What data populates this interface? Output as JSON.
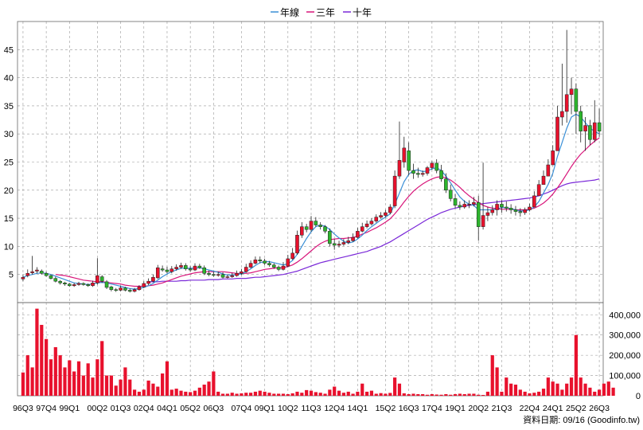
{
  "colors": {
    "up": "#e8112d",
    "down": "#2db52d",
    "wick": "#222222",
    "volume": "#e8112d",
    "line_year": "#3a8fd6",
    "line_three_year": "#d8157a",
    "line_ten_year": "#7a28d8",
    "grid": "#999999",
    "axis": "#000000"
  },
  "chart_data": {
    "type": "candlestick",
    "grid": true,
    "legend_placement": "top-center",
    "legend": [
      {
        "label": "年線",
        "color_key": "line_year"
      },
      {
        "label": "三年",
        "color_key": "line_three_year"
      },
      {
        "label": "十年",
        "color_key": "line_ten_year"
      }
    ],
    "price_axis": {
      "ylim": [
        0,
        50
      ],
      "ticks": [
        5,
        10,
        15,
        20,
        25,
        30,
        35,
        40,
        45
      ]
    },
    "volume_axis": {
      "ylim": [
        0,
        460000
      ],
      "ticks": [
        0,
        100000,
        200000,
        300000,
        400000
      ],
      "tick_labels": [
        "0",
        "100,000",
        "200,000",
        "300,000",
        "400,000"
      ]
    },
    "x_tick_labels": [
      "96Q3",
      "97Q4",
      "99Q1",
      "00Q2",
      "01Q3",
      "02Q4",
      "04Q1",
      "05Q2",
      "06Q3",
      "07Q4",
      "09Q1",
      "10Q2",
      "11Q3",
      "12Q4",
      "14Q1",
      "15Q2",
      "16Q3",
      "17Q4",
      "19Q1",
      "20Q2",
      "21Q3",
      "22Q4",
      "24Q1",
      "25Q2",
      "26Q3"
    ],
    "footer": "資料日期: 09/16 (Goodinfo.tw)",
    "closes": [
      4.5,
      5.2,
      5.5,
      5.8,
      5.2,
      4.8,
      4.3,
      3.8,
      3.5,
      3.3,
      3.0,
      3.2,
      3.4,
      3.2,
      3.0,
      3.5,
      4.8,
      3.8,
      2.7,
      2.3,
      2.2,
      2.6,
      2.2,
      2.0,
      2.3,
      2.8,
      3.4,
      3.8,
      4.5,
      6.2,
      5.8,
      5.5,
      6.0,
      6.3,
      6.6,
      6.0,
      5.8,
      6.5,
      6.2,
      5.2,
      5.0,
      4.9,
      5.0,
      4.5,
      4.6,
      4.8,
      5.2,
      5.5,
      6.3,
      7.0,
      7.6,
      7.4,
      7.0,
      6.7,
      6.3,
      5.9,
      6.5,
      7.8,
      8.8,
      12.0,
      13.5,
      13.0,
      14.5,
      13.8,
      13.5,
      12.7,
      10.5,
      10.2,
      10.4,
      10.7,
      11.0,
      11.6,
      12.7,
      13.5,
      14.0,
      14.5,
      15.2,
      15.5,
      16.0,
      17.0,
      22.5,
      25.3,
      27.5,
      23.5,
      23.0,
      22.8,
      23.0,
      24.0,
      24.8,
      23.5,
      22.0,
      20.0,
      18.5,
      17.3,
      17.0,
      17.5,
      17.5,
      17.8,
      13.5,
      15.5,
      16.0,
      16.5,
      17.5,
      17.0,
      16.8,
      16.5,
      16.2,
      16.0,
      16.5,
      17.0,
      19.0,
      21.0,
      22.5,
      24.5,
      27.0,
      33.0,
      34.0,
      37.0,
      38.0,
      34.0,
      30.5,
      31.5,
      29.0,
      32.0,
      30.5
    ],
    "opens": [
      4.2,
      4.8,
      5.3,
      5.6,
      5.6,
      5.2,
      4.8,
      4.3,
      3.8,
      3.5,
      3.3,
      3.0,
      3.2,
      3.4,
      3.2,
      3.0,
      3.5,
      4.6,
      3.7,
      2.8,
      2.3,
      2.2,
      2.6,
      2.2,
      2.0,
      2.3,
      2.8,
      3.4,
      3.8,
      4.4,
      6.0,
      5.8,
      5.5,
      6.0,
      6.3,
      6.6,
      6.0,
      5.8,
      6.5,
      6.2,
      5.2,
      5.0,
      4.9,
      5.0,
      4.5,
      4.6,
      4.8,
      5.2,
      5.5,
      6.3,
      7.0,
      7.6,
      7.4,
      7.0,
      6.7,
      6.3,
      5.9,
      6.5,
      7.8,
      8.8,
      12.0,
      13.5,
      13.0,
      14.5,
      13.8,
      13.5,
      12.7,
      10.5,
      10.2,
      10.4,
      10.7,
      11.0,
      11.6,
      12.7,
      13.5,
      14.0,
      14.5,
      15.2,
      15.5,
      16.0,
      17.2,
      22.5,
      25.0,
      27.0,
      23.5,
      23.0,
      22.8,
      23.0,
      24.0,
      24.8,
      23.5,
      22.0,
      20.0,
      18.5,
      17.3,
      17.0,
      17.5,
      17.5,
      17.8,
      13.5,
      15.5,
      16.0,
      16.5,
      17.5,
      17.0,
      16.8,
      16.5,
      16.2,
      16.0,
      16.5,
      17.0,
      19.0,
      21.0,
      22.5,
      24.5,
      27.0,
      33.0,
      34.0,
      37.0,
      38.0,
      34.0,
      30.5,
      31.5,
      29.0,
      32.0
    ],
    "highs": [
      4.9,
      5.9,
      8.3,
      6.3,
      5.9,
      5.5,
      5.0,
      4.6,
      4.0,
      3.7,
      3.5,
      3.5,
      3.7,
      3.6,
      3.4,
      3.9,
      7.9,
      4.9,
      4.0,
      3.0,
      2.6,
      3.0,
      2.8,
      2.5,
      2.6,
      3.1,
      3.8,
      4.3,
      5.0,
      6.7,
      6.6,
      6.4,
      6.5,
      6.8,
      7.1,
      7.0,
      6.5,
      7.0,
      6.9,
      6.6,
      5.7,
      5.5,
      5.5,
      5.4,
      5.0,
      5.3,
      5.7,
      6.0,
      6.9,
      7.5,
      8.2,
      8.2,
      7.8,
      7.4,
      7.0,
      6.6,
      7.2,
      8.5,
      9.7,
      12.8,
      14.3,
      14.0,
      15.4,
      15.2,
      14.3,
      13.8,
      13.2,
      11.3,
      11.0,
      11.3,
      11.7,
      12.3,
      13.3,
      14.2,
      14.6,
      15.0,
      15.7,
      16.1,
      16.5,
      17.5,
      23.5,
      32.2,
      29.5,
      28.5,
      24.7,
      24.0,
      23.5,
      24.3,
      25.2,
      25.5,
      24.5,
      23.0,
      21.0,
      19.3,
      18.0,
      18.2,
      18.2,
      18.8,
      19.0,
      24.9,
      17.0,
      17.3,
      18.2,
      18.2,
      18.0,
      17.5,
      17.2,
      16.8,
      16.9,
      17.6,
      19.8,
      21.8,
      23.5,
      25.5,
      28.0,
      35.0,
      42.5,
      48.5,
      40.0,
      39.0,
      35.0,
      33.0,
      32.5,
      36.0,
      34.5
    ],
    "lows": [
      3.8,
      4.5,
      5.0,
      5.2,
      5.0,
      4.6,
      4.1,
      3.6,
      3.2,
      3.0,
      2.8,
      2.8,
      3.0,
      3.0,
      2.8,
      2.8,
      3.2,
      3.5,
      2.4,
      2.0,
      1.9,
      2.0,
      2.0,
      1.8,
      1.8,
      2.1,
      2.6,
      3.1,
      3.6,
      4.2,
      5.5,
      5.2,
      5.2,
      5.7,
      6.0,
      5.7,
      5.5,
      5.6,
      6.0,
      4.9,
      4.7,
      4.6,
      4.6,
      4.3,
      4.3,
      4.4,
      4.6,
      4.9,
      5.3,
      6.1,
      6.8,
      7.0,
      6.7,
      6.4,
      6.0,
      5.6,
      5.7,
      6.3,
      7.6,
      8.5,
      11.5,
      12.5,
      12.6,
      13.5,
      13.0,
      12.3,
      10.0,
      9.4,
      9.8,
      10.1,
      10.4,
      10.8,
      11.4,
      12.5,
      13.2,
      13.7,
      14.2,
      14.9,
      15.2,
      15.7,
      16.8,
      22.0,
      24.0,
      22.7,
      22.0,
      22.2,
      22.4,
      22.6,
      23.6,
      23.0,
      21.5,
      19.5,
      18.0,
      16.8,
      16.5,
      16.7,
      16.8,
      17.1,
      11.0,
      13.0,
      14.5,
      15.5,
      15.5,
      16.0,
      16.2,
      15.8,
      15.5,
      15.3,
      15.6,
      16.2,
      18.5,
      20.5,
      22.0,
      24.0,
      26.5,
      29.5,
      31.5,
      32.0,
      33.5,
      30.0,
      28.5,
      27.0,
      28.0,
      28.5,
      29.5
    ],
    "volumes": [
      115000,
      200000,
      140000,
      430000,
      350000,
      280000,
      180000,
      240000,
      200000,
      140000,
      175000,
      120000,
      170000,
      100000,
      160000,
      90000,
      180000,
      270000,
      100000,
      100000,
      50000,
      80000,
      140000,
      80000,
      30000,
      20000,
      30000,
      75000,
      60000,
      45000,
      110000,
      170000,
      30000,
      35000,
      25000,
      20000,
      18000,
      25000,
      40000,
      55000,
      70000,
      120000,
      20000,
      10000,
      10000,
      15000,
      10000,
      12000,
      15000,
      15000,
      20000,
      25000,
      20000,
      15000,
      10000,
      10000,
      10000,
      8000,
      12000,
      20000,
      15000,
      28000,
      25000,
      18000,
      15000,
      10000,
      30000,
      45000,
      25000,
      15000,
      20000,
      10000,
      20000,
      60000,
      20000,
      25000,
      10000,
      13000,
      10000,
      14000,
      90000,
      60000,
      12000,
      8000,
      10000,
      8000,
      8000,
      5000,
      8000,
      6000,
      5000,
      8000,
      5000,
      8000,
      10000,
      8000,
      10000,
      10000,
      5000,
      4000,
      20000,
      200000,
      140000,
      20000,
      90000,
      60000,
      55000,
      30000,
      20000,
      12000,
      15000,
      20000,
      35000,
      90000,
      70000,
      60000,
      30000,
      60000,
      90000,
      300000,
      90000,
      60000,
      40000,
      20000,
      30000,
      60000,
      70000,
      40000
    ],
    "line_year": [
      4.5,
      4.8,
      5.0,
      5.2,
      5.3,
      5.2,
      5.0,
      4.7,
      4.4,
      4.1,
      3.8,
      3.5,
      3.4,
      3.3,
      3.2,
      3.3,
      3.5,
      3.6,
      3.5,
      3.3,
      3.1,
      2.9,
      2.7,
      2.5,
      2.4,
      2.5,
      2.7,
      3.0,
      3.4,
      4.0,
      4.6,
      5.1,
      5.5,
      5.8,
      6.1,
      6.1,
      6.1,
      6.1,
      6.2,
      6.0,
      5.8,
      5.6,
      5.4,
      5.1,
      4.9,
      4.9,
      5.0,
      5.1,
      5.5,
      6.0,
      6.6,
      7.1,
      7.3,
      7.3,
      7.1,
      6.9,
      6.7,
      6.9,
      7.5,
      8.6,
      10.0,
      11.4,
      12.6,
      13.5,
      13.8,
      13.6,
      13.0,
      12.2,
      11.5,
      10.9,
      10.6,
      10.8,
      11.3,
      12.0,
      12.8,
      13.5,
      14.1,
      14.7,
      15.2,
      15.8,
      17.5,
      19.5,
      21.5,
      22.8,
      23.5,
      23.6,
      23.3,
      23.4,
      23.8,
      24.0,
      23.5,
      22.5,
      21.3,
      20.0,
      18.8,
      18.0,
      17.5,
      17.3,
      16.5,
      16.5,
      16.5,
      16.5,
      16.7,
      16.9,
      16.9,
      16.7,
      16.5,
      16.3,
      16.3,
      16.5,
      17.0,
      18.0,
      19.5,
      21.0,
      23.0,
      26.0,
      28.5,
      31.0,
      33.0,
      33.5,
      33.0,
      32.0,
      31.0,
      30.5,
      30.0
    ],
    "line_three_year": [
      null,
      null,
      null,
      null,
      null,
      null,
      null,
      5.0,
      4.9,
      4.8,
      4.6,
      4.4,
      4.2,
      4.0,
      3.9,
      3.8,
      3.7,
      3.7,
      3.6,
      3.5,
      3.4,
      3.3,
      3.1,
      3.0,
      2.9,
      2.9,
      2.9,
      3.0,
      3.1,
      3.3,
      3.5,
      3.8,
      4.1,
      4.4,
      4.7,
      4.9,
      5.1,
      5.3,
      5.4,
      5.5,
      5.5,
      5.5,
      5.5,
      5.5,
      5.4,
      5.3,
      5.2,
      5.2,
      5.2,
      5.3,
      5.5,
      5.7,
      5.9,
      6.0,
      6.1,
      6.2,
      6.2,
      6.4,
      6.7,
      7.2,
      7.8,
      8.5,
      9.2,
      9.9,
      10.5,
      10.9,
      11.2,
      11.3,
      11.4,
      11.4,
      11.5,
      11.6,
      11.8,
      12.2,
      12.5,
      12.9,
      13.3,
      13.8,
      14.3,
      14.9,
      15.8,
      16.8,
      17.9,
      18.9,
      19.8,
      20.5,
      21.1,
      21.6,
      22.0,
      22.3,
      22.4,
      22.2,
      21.8,
      21.2,
      20.5,
      19.7,
      19.0,
      18.4,
      17.8,
      17.3,
      17.0,
      16.8,
      16.7,
      16.6,
      16.6,
      16.6,
      16.5,
      16.5,
      16.5,
      16.6,
      16.8,
      17.2,
      17.7,
      18.4,
      19.3,
      20.4,
      21.6,
      22.9,
      24.2,
      25.4,
      26.4,
      27.2,
      28.0,
      28.7,
      29.3
    ],
    "line_ten_year": [
      null,
      null,
      null,
      null,
      null,
      null,
      null,
      null,
      null,
      null,
      null,
      null,
      null,
      null,
      null,
      null,
      null,
      null,
      null,
      null,
      null,
      null,
      null,
      null,
      null,
      null,
      null,
      3.7,
      3.7,
      3.7,
      3.8,
      3.8,
      3.8,
      3.8,
      3.9,
      3.9,
      4.0,
      4.0,
      4.0,
      4.0,
      4.1,
      4.1,
      4.1,
      4.2,
      4.2,
      4.2,
      4.3,
      4.3,
      4.3,
      4.4,
      4.5,
      4.5,
      4.6,
      4.7,
      4.8,
      4.9,
      5.0,
      5.2,
      5.4,
      5.6,
      5.9,
      6.2,
      6.5,
      6.8,
      7.1,
      7.3,
      7.5,
      7.7,
      7.9,
      8.1,
      8.3,
      8.5,
      8.7,
      8.9,
      9.1,
      9.4,
      9.7,
      10.0,
      10.4,
      10.8,
      11.3,
      11.8,
      12.3,
      12.8,
      13.3,
      13.8,
      14.3,
      14.8,
      15.2,
      15.6,
      16.0,
      16.3,
      16.6,
      16.8,
      17.0,
      17.2,
      17.3,
      17.4,
      17.5,
      17.6,
      17.7,
      17.8,
      17.9,
      18.0,
      18.1,
      18.2,
      18.3,
      18.4,
      18.5,
      18.6,
      18.8,
      19.0,
      19.3,
      19.6,
      20.0,
      20.4,
      20.8,
      21.1,
      21.3,
      21.4,
      21.5,
      21.6,
      21.7,
      21.8,
      22.0
    ]
  }
}
